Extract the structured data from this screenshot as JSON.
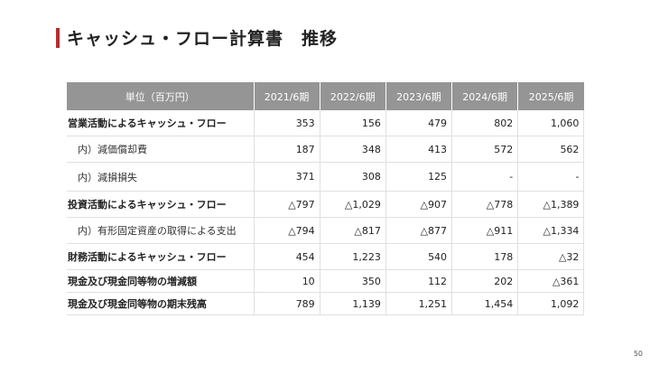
{
  "slide": {
    "title": "キャッシュ・フロー計算書　推移",
    "page_number": "50"
  },
  "table": {
    "unit_header": "単位（百万円）",
    "periods": [
      "2021/6期",
      "2022/6期",
      "2023/6期",
      "2024/6期",
      "2025/6期"
    ],
    "rows": [
      {
        "label": "営業活動によるキャッシュ・フロー",
        "values": [
          "353",
          "156",
          "479",
          "802",
          "1,060"
        ]
      },
      {
        "label": "内）減価償却費",
        "values": [
          "187",
          "348",
          "413",
          "572",
          "562"
        ]
      },
      {
        "label": "内）減損損失",
        "values": [
          "371",
          "308",
          "125",
          "-",
          "-"
        ]
      },
      {
        "label": "投資活動によるキャッシュ・フロー",
        "values": [
          "△797",
          "△1,029",
          "△907",
          "△778",
          "△1,389"
        ]
      },
      {
        "label": "内）有形固定資産の取得による支出",
        "values": [
          "△794",
          "△817",
          "△877",
          "△911",
          "△1,334"
        ]
      },
      {
        "label": "財務活動によるキャッシュ・フロー",
        "values": [
          "454",
          "1,223",
          "540",
          "178",
          "△32"
        ]
      },
      {
        "label": "現金及び現金同等物の増減額",
        "values": [
          "10",
          "350",
          "112",
          "202",
          "△361"
        ]
      },
      {
        "label": "現金及び現金同等物の期末残高",
        "values": [
          "789",
          "1,139",
          "1,251",
          "1,454",
          "1,092"
        ]
      }
    ]
  }
}
